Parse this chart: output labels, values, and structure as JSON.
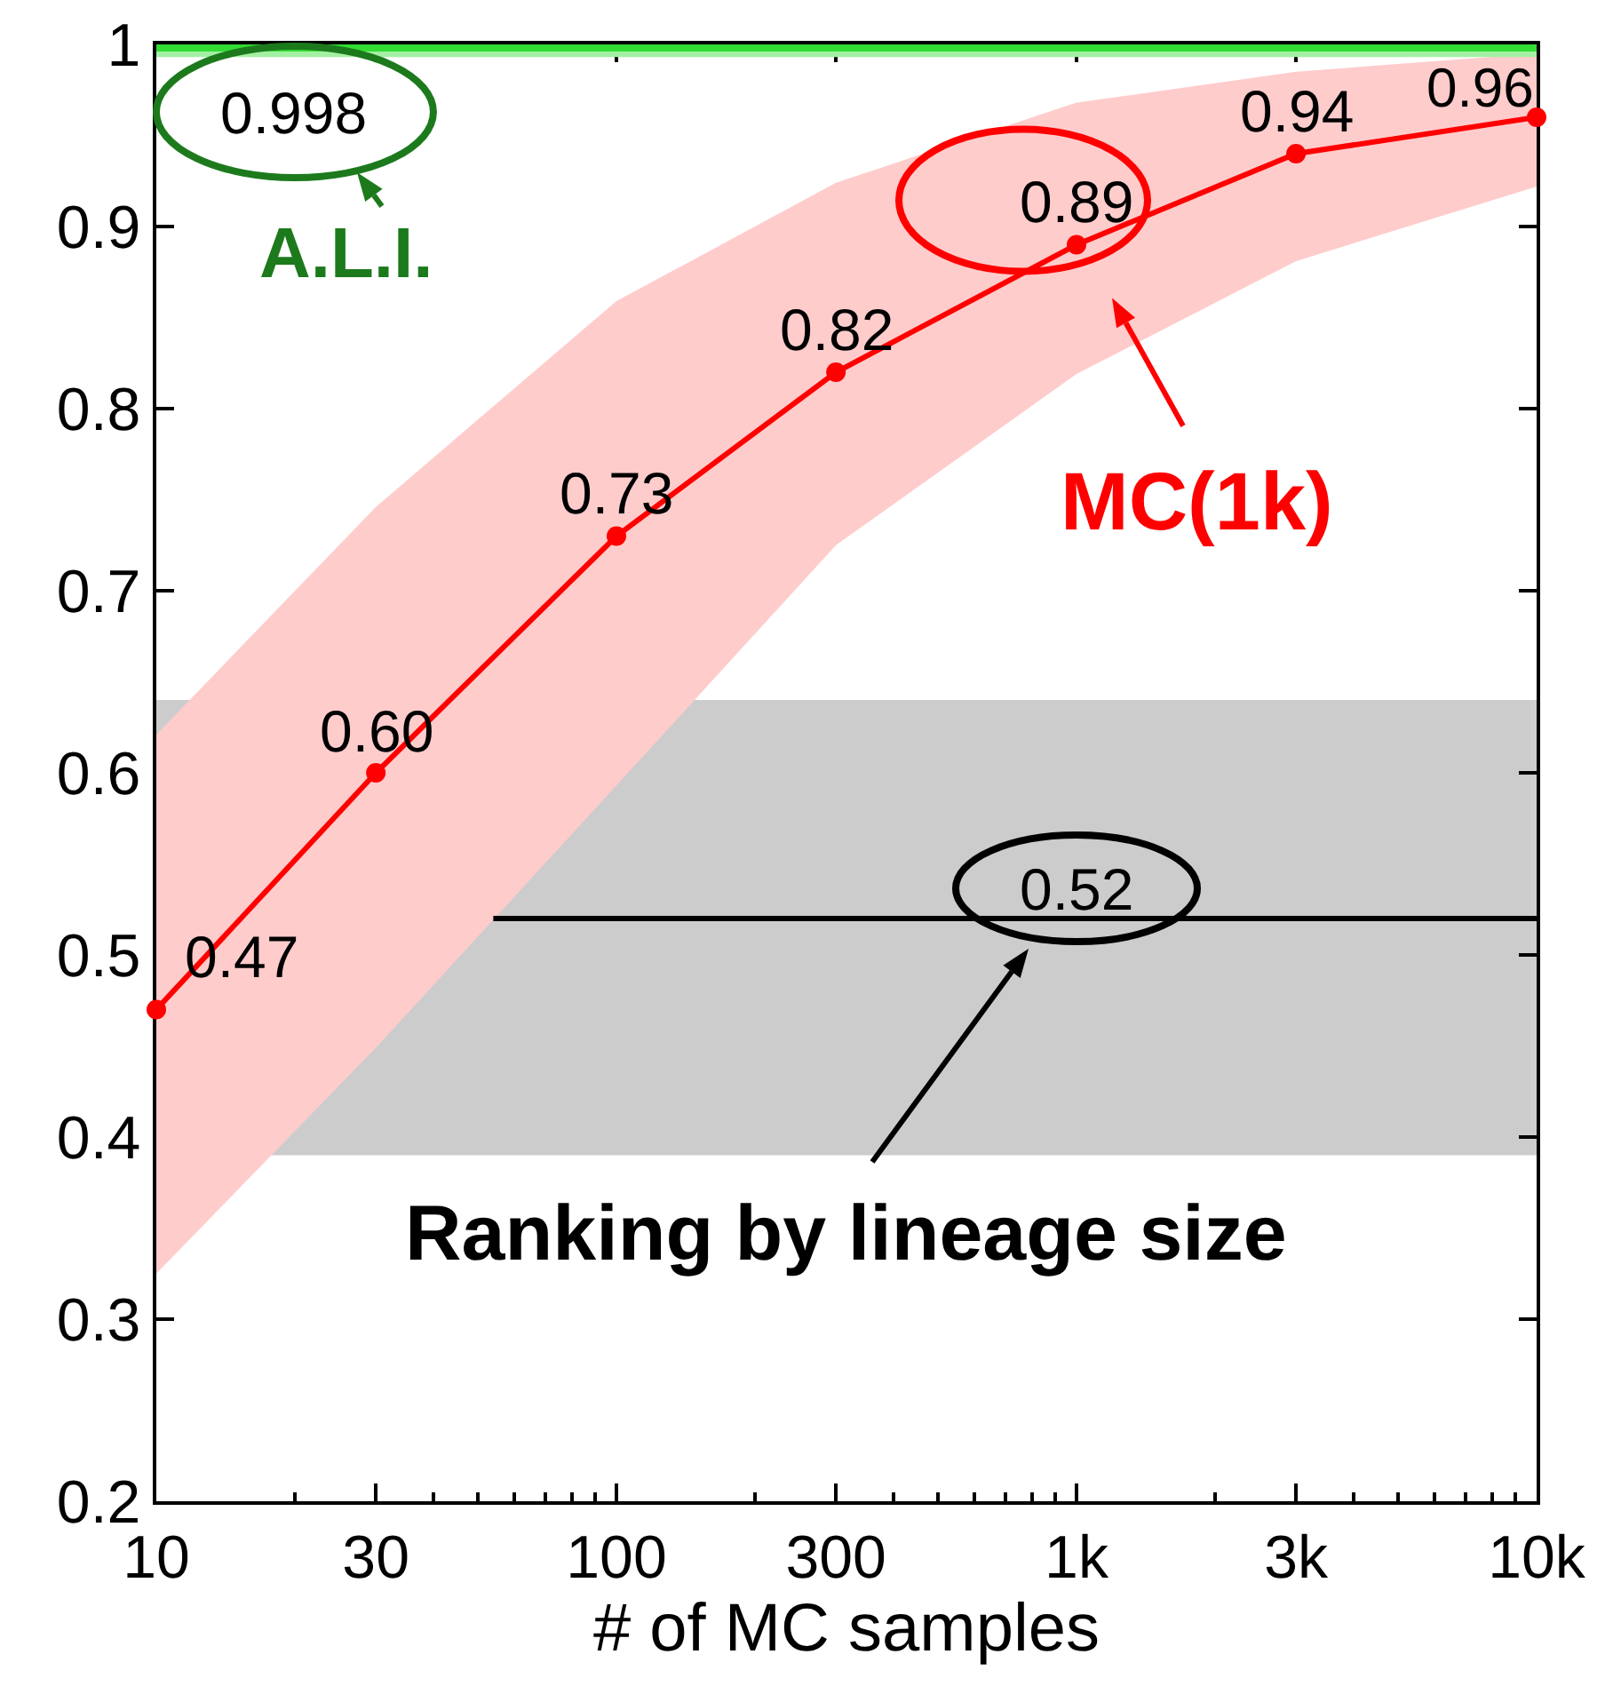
{
  "chart_data": {
    "type": "line",
    "xlabel": "# of MC samples",
    "xlim": [
      10,
      10000
    ],
    "xticks": [
      10,
      30,
      100,
      300,
      {
        "value": 1000,
        "label": "1k"
      },
      {
        "value": 3000,
        "label": "3k"
      },
      {
        "value": 10000,
        "label": "10k"
      }
    ],
    "ylim": [
      0.2,
      1
    ],
    "yticks": [
      0.2,
      0.3,
      0.4,
      0.5,
      0.6,
      0.7,
      0.8,
      0.9,
      1
    ],
    "log": "x",
    "grid": false,
    "line_style": "solid",
    "series": [
      {
        "color": "#ff0000",
        "marker": "circle",
        "x": [
          10,
          30,
          100,
          300,
          1000,
          3000,
          10000
        ],
        "values": [
          0.47,
          0.6,
          0.73,
          0.82,
          0.89,
          0.94,
          0.96
        ],
        "value_labels": [
          "0.47",
          "0.60",
          "0.73",
          "0.82",
          "0.89",
          "0.94",
          "0.96"
        ],
        "lower": [
          0.325,
          0.449,
          0.593,
          0.725,
          0.819,
          0.881,
          0.922
        ],
        "upper": [
          0.621,
          0.746,
          0.859,
          0.924,
          0.968,
          0.985,
          0.995
        ]
      },
      {
        "color": "#33dd33",
        "marker": "none",
        "x": [
          10,
          10000
        ],
        "values": [
          0.998,
          0.998
        ],
        "lower": [
          0.993,
          0.993
        ],
        "upper": [
          1,
          1
        ]
      },
      {
        "color": "#000000",
        "marker": "none",
        "x": [
          54,
          10000
        ],
        "values": [
          0.52,
          0.52
        ]
      }
    ],
    "bands": [
      {
        "axis": "y",
        "from": 0.39,
        "to": 0.64,
        "color": "#cccccc"
      }
    ],
    "annotations": [
      {
        "text": "0.998",
        "x": 20,
        "y": 0.998
      },
      {
        "text": "0.52",
        "x": 1000,
        "y": 0.52
      },
      "A.L.I.",
      "MC(1k)",
      "Ranking by lineage size"
    ]
  }
}
